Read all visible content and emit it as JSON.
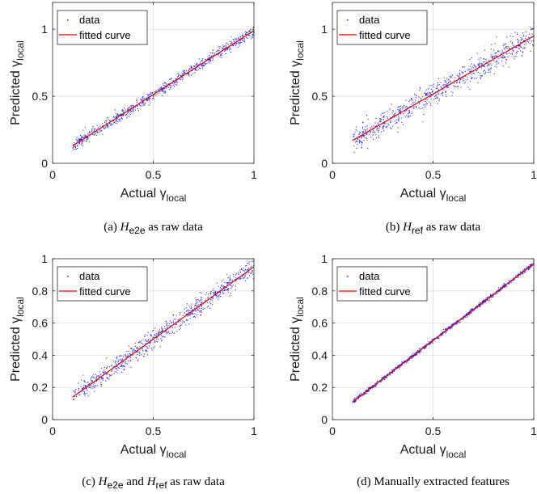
{
  "colors": {
    "data": "#1f1fff",
    "fit": "#e00000",
    "grid": "#dddddd",
    "axis": "#262626"
  },
  "chart_data": [
    {
      "type": "scatter",
      "caption": {
        "label": "(a)",
        "parts": [
          {
            "t": "H",
            "i": true
          },
          {
            "t": "e2e",
            "sub": true
          },
          {
            "t": " as raw data"
          }
        ]
      },
      "xlabel": "Actual",
      "ylabel": "Predicted",
      "var": "γ",
      "var_sub": "local",
      "xlim": [
        0,
        1
      ],
      "ylim": [
        0,
        1.2
      ],
      "xticks": [
        0,
        0.5,
        1
      ],
      "xtick_labels": [
        "0",
        "0.5",
        "1"
      ],
      "yticks": [
        0,
        0.5,
        1
      ],
      "ytick_labels": [
        "0",
        "0.5",
        "1"
      ],
      "grid": true,
      "legend": [
        "data",
        "fitted curve"
      ],
      "legend_position": "top-left",
      "fit": {
        "x": [
          0.1,
          1.0
        ],
        "y": [
          0.13,
          0.99
        ]
      },
      "scatter": {
        "n": 700,
        "x_range": [
          0.1,
          1.0
        ],
        "noise_sd": 0.022,
        "seed": 11
      }
    },
    {
      "type": "scatter",
      "caption": {
        "label": "(b)",
        "parts": [
          {
            "t": "H",
            "i": true
          },
          {
            "t": "ref",
            "sub": true
          },
          {
            "t": " as raw data"
          }
        ]
      },
      "xlabel": "Actual",
      "ylabel": "Predicted",
      "var": "γ",
      "var_sub": "local",
      "xlim": [
        0,
        1
      ],
      "ylim": [
        0,
        1.2
      ],
      "xticks": [
        0,
        0.5,
        1
      ],
      "xtick_labels": [
        "0",
        "0.5",
        "1"
      ],
      "yticks": [
        0,
        0.5,
        1
      ],
      "ytick_labels": [
        "0",
        "0.5",
        "1"
      ],
      "grid": true,
      "legend": [
        "data",
        "fitted curve"
      ],
      "legend_position": "top-left",
      "fit": {
        "x": [
          0.1,
          1.0
        ],
        "y": [
          0.17,
          0.95
        ]
      },
      "scatter": {
        "n": 700,
        "x_range": [
          0.1,
          1.0
        ],
        "noise_sd": 0.045,
        "seed": 23
      }
    },
    {
      "type": "scatter",
      "caption": {
        "label": "(c)",
        "parts": [
          {
            "t": "H",
            "i": true
          },
          {
            "t": "e2e",
            "sub": true
          },
          {
            "t": " and "
          },
          {
            "t": "H",
            "i": true
          },
          {
            "t": "ref",
            "sub": true
          },
          {
            "t": " as raw data"
          }
        ]
      },
      "xlabel": "Actual",
      "ylabel": "Predicted",
      "var": "γ",
      "var_sub": "local",
      "xlim": [
        0,
        1
      ],
      "ylim": [
        0,
        1
      ],
      "xticks": [
        0,
        0.5,
        1
      ],
      "xtick_labels": [
        "0",
        "0.5",
        "1"
      ],
      "yticks": [
        0,
        0.2,
        0.4,
        0.6,
        0.8,
        1
      ],
      "ytick_labels": [
        "0",
        "0.2",
        "0.4",
        "0.6",
        "0.8",
        "1"
      ],
      "grid": true,
      "legend": [
        "data",
        "fitted curve"
      ],
      "legend_position": "top-left",
      "fit": {
        "x": [
          0.1,
          1.0
        ],
        "y": [
          0.14,
          0.95
        ]
      },
      "scatter": {
        "n": 700,
        "x_range": [
          0.1,
          1.0
        ],
        "noise_sd": 0.03,
        "seed": 37
      }
    },
    {
      "type": "scatter",
      "caption": {
        "label": "(d)",
        "parts": [
          {
            "t": "Manually extracted features"
          }
        ]
      },
      "xlabel": "Actual",
      "ylabel": "Predicted",
      "var": "γ",
      "var_sub": "local",
      "xlim": [
        0,
        1
      ],
      "ylim": [
        0,
        1
      ],
      "xticks": [
        0,
        0.5,
        1
      ],
      "xtick_labels": [
        "0",
        "0.5",
        "1"
      ],
      "yticks": [
        0,
        0.2,
        0.4,
        0.6,
        0.8,
        1
      ],
      "ytick_labels": [
        "0",
        "0.2",
        "0.4",
        "0.6",
        "0.8",
        "1"
      ],
      "grid": true,
      "legend": [
        "data",
        "fitted curve"
      ],
      "legend_position": "top-left",
      "fit": {
        "x": [
          0.1,
          1.0
        ],
        "y": [
          0.11,
          0.97
        ]
      },
      "scatter": {
        "n": 900,
        "x_range": [
          0.1,
          1.0
        ],
        "noise_sd": 0.006,
        "seed": 53
      }
    }
  ]
}
